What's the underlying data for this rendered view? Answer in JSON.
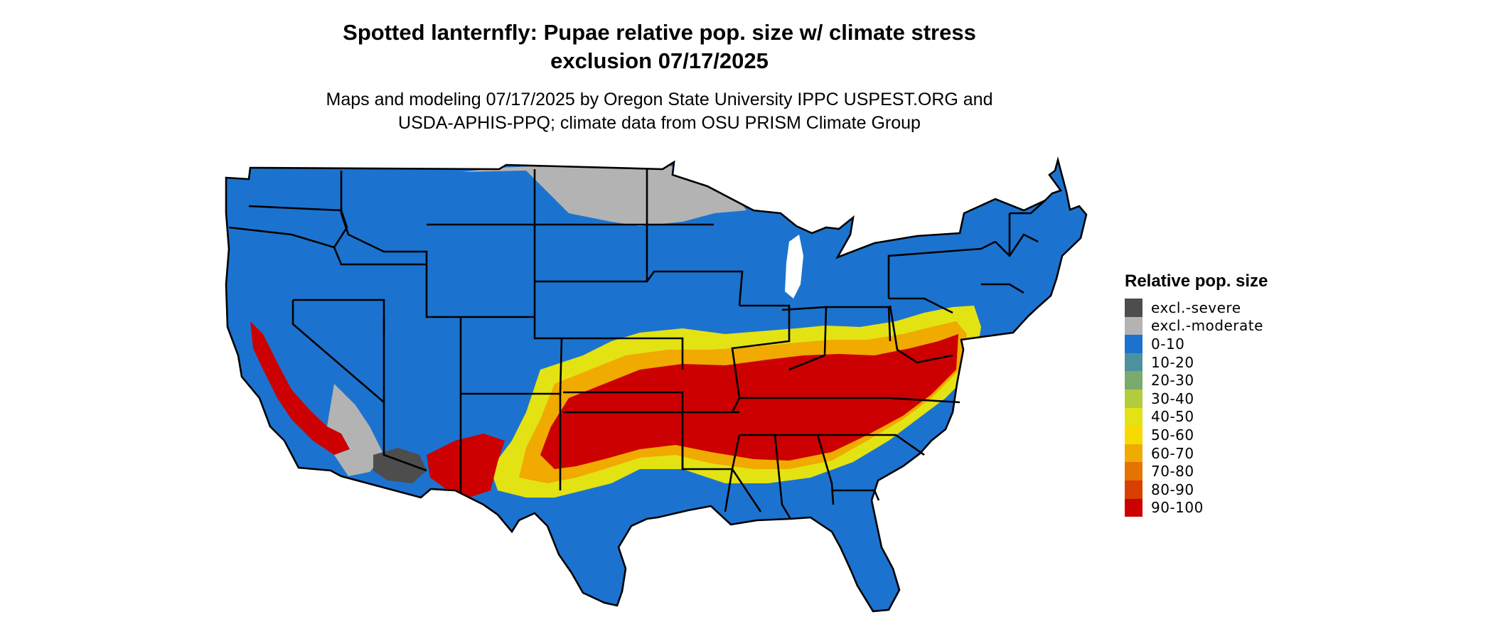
{
  "title": {
    "line1": "Spotted lanternfly: Pupae relative pop. size w/ climate stress",
    "line2": "exclusion 07/17/2025"
  },
  "subtitle": {
    "line1": "Maps and modeling 07/17/2025 by Oregon State University IPPC USPEST.ORG and",
    "line2": "USDA-APHIS-PPQ; climate data from OSU PRISM Climate Group"
  },
  "legend": {
    "title": "Relative pop. size",
    "items": [
      {
        "label": "excl.-severe",
        "color": "#4d4d4d"
      },
      {
        "label": "excl.-moderate",
        "color": "#b3b3b3"
      },
      {
        "label": "0-10",
        "color": "#1c73cf"
      },
      {
        "label": "10-20",
        "color": "#4c929e"
      },
      {
        "label": "20-30",
        "color": "#7aaa6e"
      },
      {
        "label": "30-40",
        "color": "#b2cc3e"
      },
      {
        "label": "40-50",
        "color": "#e3e313"
      },
      {
        "label": "50-60",
        "color": "#f7db00"
      },
      {
        "label": "60-70",
        "color": "#f0aa00"
      },
      {
        "label": "70-80",
        "color": "#e57300"
      },
      {
        "label": "80-90",
        "color": "#d93f00"
      },
      {
        "label": "90-100",
        "color": "#cc0000"
      }
    ]
  },
  "colors": {
    "background": "#ffffff",
    "state_border": "#000000",
    "base": "#1c73cf",
    "excl_moderate": "#b3b3b3",
    "excl_severe": "#4d4d4d",
    "low": "#e3e313",
    "mid": "#f0aa00",
    "high": "#cc0000"
  }
}
